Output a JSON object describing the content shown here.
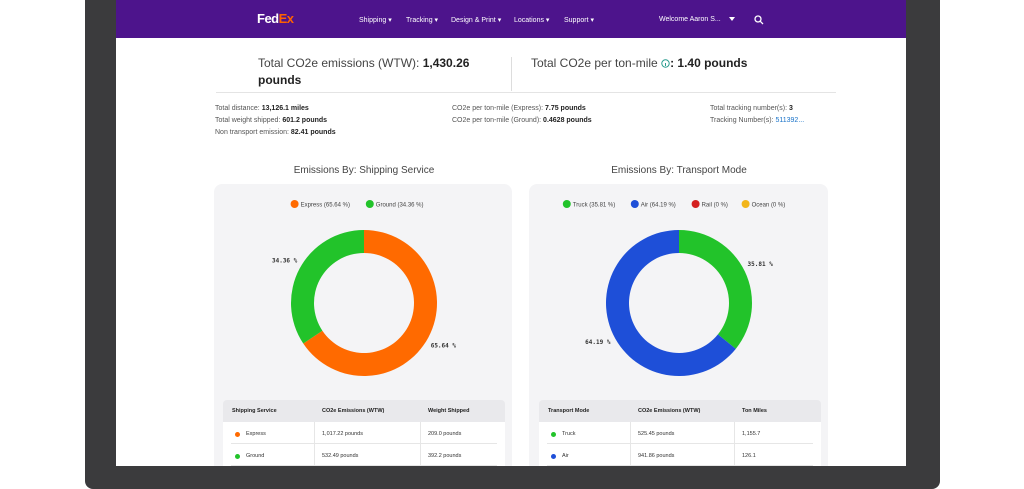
{
  "nav": {
    "logo_parts": [
      "Fed",
      "Ex"
    ],
    "items": [
      "Shipping",
      "Tracking",
      "Design & Print",
      "Locations",
      "Support"
    ],
    "welcome": "Welcome Aaron S..."
  },
  "summary": {
    "emissions_label": "Total CO2e emissions (WTW):",
    "emissions_value": "1,430.26 pounds",
    "per_ton_label": "Total CO2e per ton-mile",
    "per_ton_value": ": 1.40 pounds"
  },
  "details": [
    [
      {
        "label": "Total distance:",
        "value": "13,126.1 miles"
      },
      {
        "label": "Total weight shipped:",
        "value": "601.2 pounds"
      },
      {
        "label": "Non transport emission:",
        "value": "82.41 pounds"
      }
    ],
    [
      {
        "label": "CO2e per ton-mile (Express):",
        "value": "7.75 pounds"
      },
      {
        "label": "CO2e per ton-mile (Ground):",
        "value": "0.4628 pounds"
      }
    ],
    [
      {
        "label": "Total tracking number(s):",
        "value": "3"
      },
      {
        "label": "Tracking Number(s):",
        "value": "511392..."
      }
    ]
  ],
  "chart_data": [
    {
      "type": "donut",
      "title": "Emissions By: Shipping Service",
      "categories": [
        "Express",
        "Ground"
      ],
      "values": [
        65.64,
        34.36
      ],
      "value_labels": [
        "65.64 %",
        "34.36 %"
      ],
      "legend": [
        "Express (65.64 %)",
        "Ground (34.36 %)"
      ],
      "colors": [
        "#ff6a00",
        "#22c32a"
      ]
    },
    {
      "type": "donut",
      "title": "Emissions By: Transport Mode",
      "categories": [
        "Truck",
        "Air",
        "Rail",
        "Ocean"
      ],
      "values": [
        35.81,
        64.19,
        0,
        0
      ],
      "value_labels": [
        "35.81 %",
        "64.19 %",
        null,
        null
      ],
      "legend": [
        "Truck (35.81 %)",
        "Air (64.19 %)",
        "Rail (0 %)",
        "Ocean (0 %)"
      ],
      "colors": [
        "#22c32a",
        "#1e4fd8",
        "#d42020",
        "#f2b51a"
      ]
    }
  ],
  "tables": [
    {
      "columns": [
        "Shipping Service",
        "CO2e Emissions (WTW)",
        "Weight Shipped"
      ],
      "rows": [
        [
          "Express",
          "1,017.22 pounds",
          "209.0 pounds"
        ],
        [
          "Ground",
          "532.49 pounds",
          "392.2 pounds"
        ]
      ]
    },
    {
      "columns": [
        "Transport Mode",
        "CO2e Emissions (WTW)",
        "Ton Miles"
      ],
      "rows": [
        [
          "Truck",
          "525.45 pounds",
          "1,155.7"
        ],
        [
          "Air",
          "941.86 pounds",
          "126.1"
        ]
      ]
    }
  ]
}
